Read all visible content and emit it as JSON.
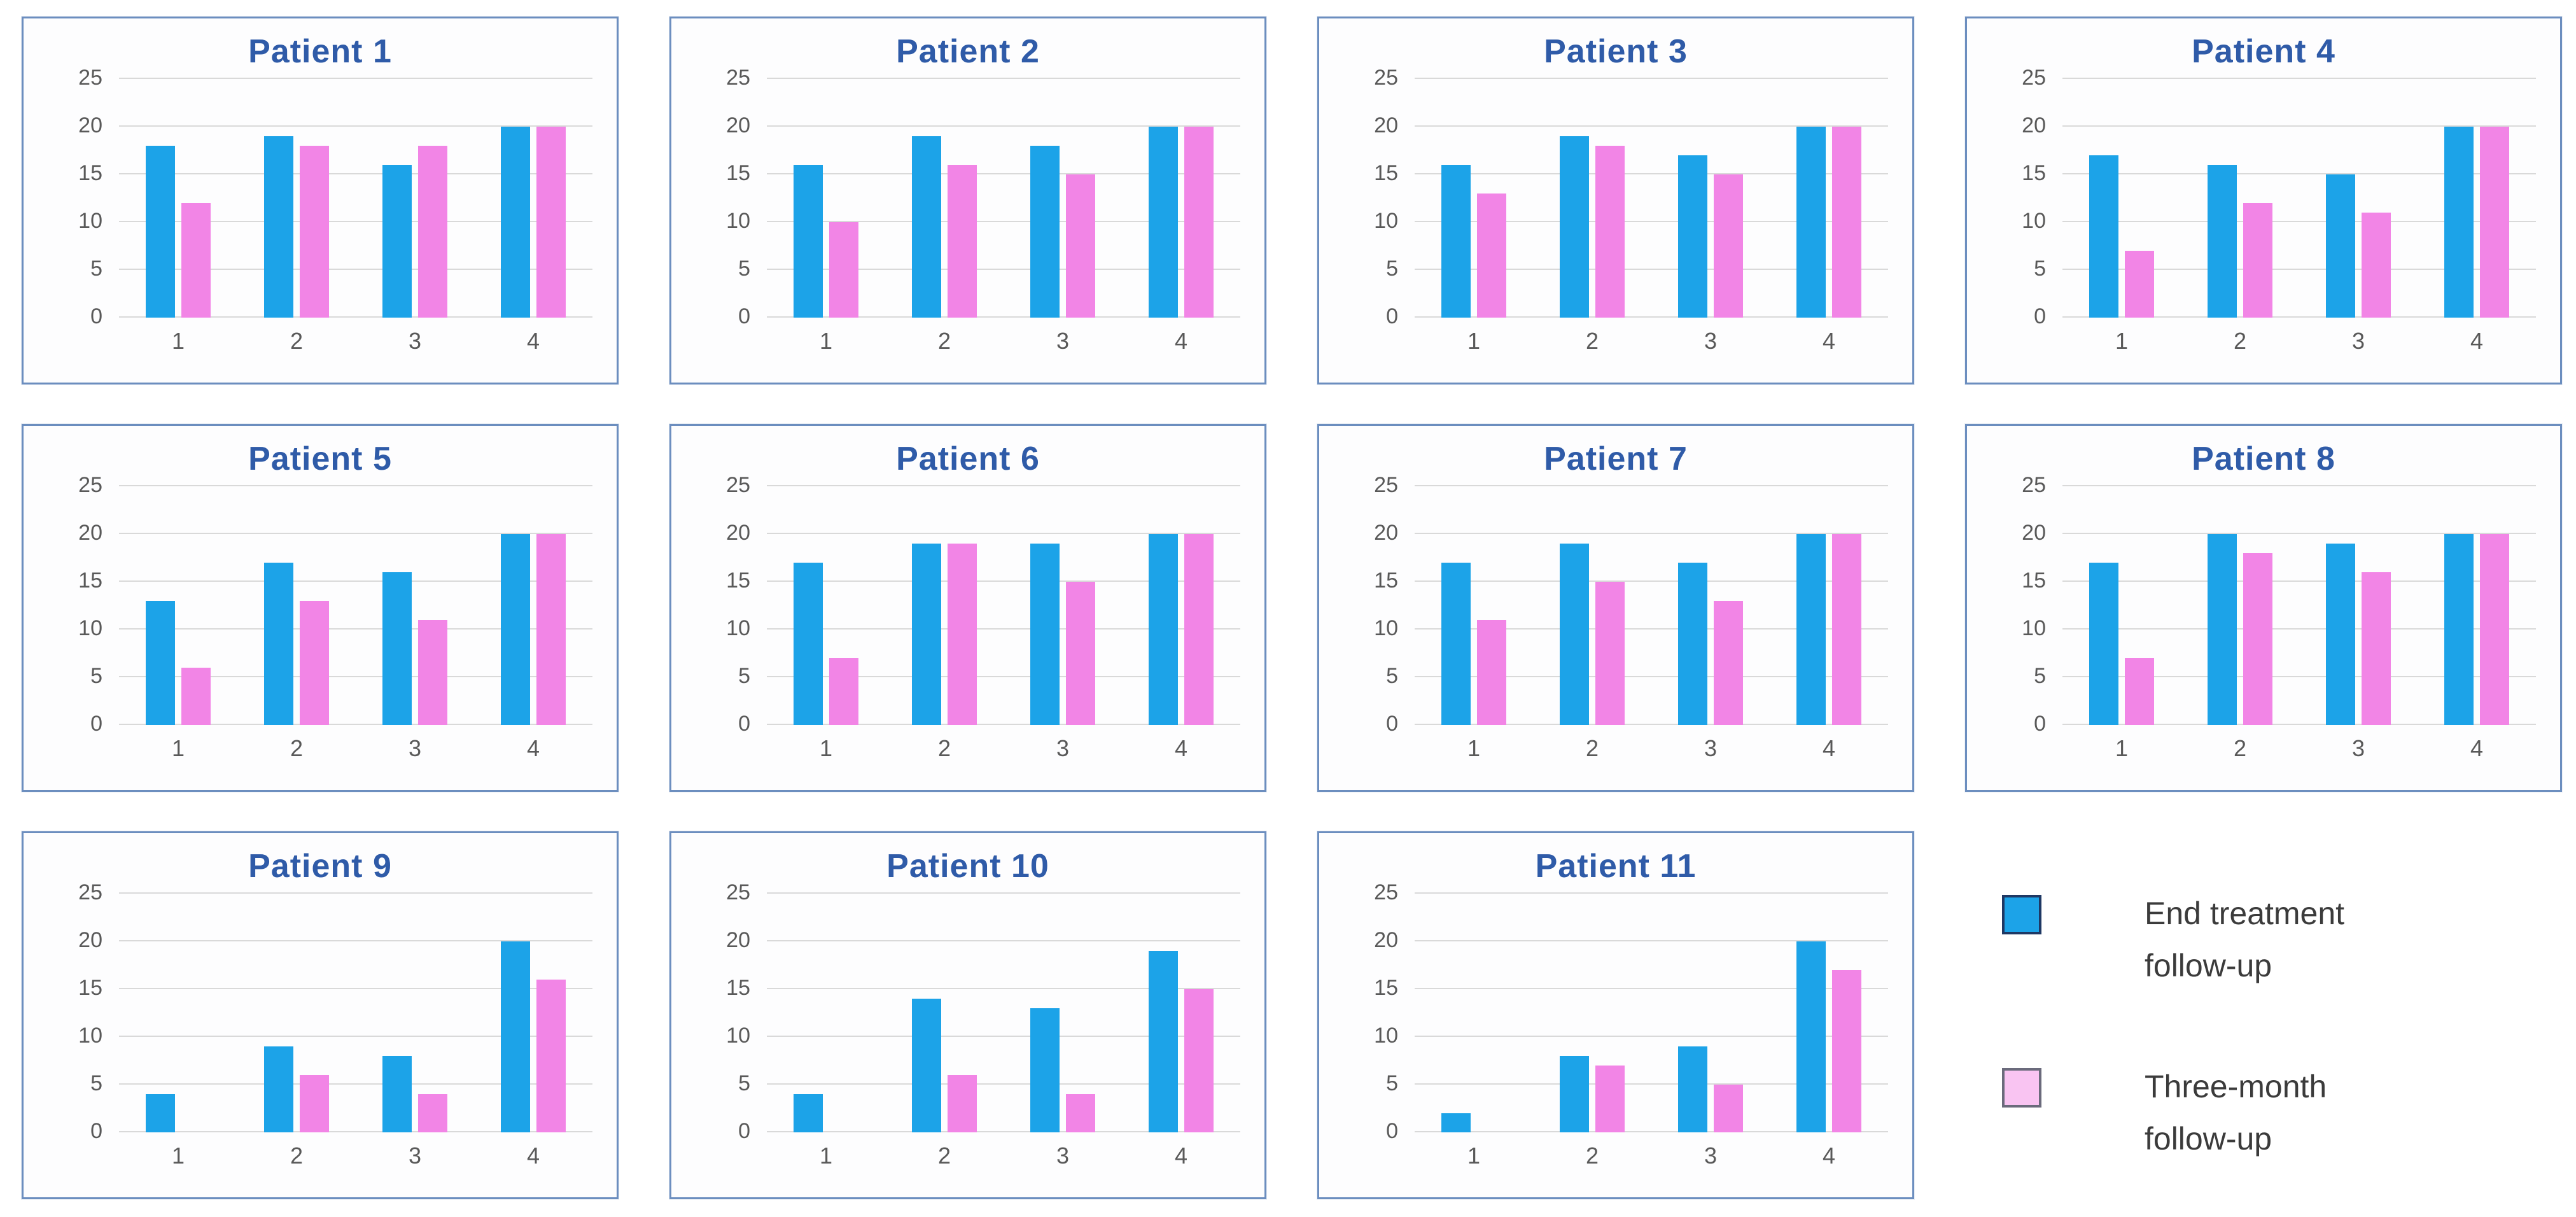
{
  "colors": {
    "end_treatment_blue": "#1CA3E8",
    "three_month_pink": "#F285E6",
    "legend_pink_fill": "#F9C4F2",
    "legend_blue_border": "#1F3864",
    "legend_pink_border": "#6B6B7C",
    "panel_border": "#6C8EBF",
    "title_text": "#2F5BA8",
    "axis_text": "#595959",
    "gridline": "#D9D9D9",
    "legend_text": "#3B3B3B"
  },
  "axis": {
    "ticks": [
      0,
      5,
      10,
      15,
      20,
      25
    ]
  },
  "legend": {
    "items": [
      {
        "series": "End treatment follow-up",
        "line1": "End treatment",
        "line2": "follow-up",
        "color_key": "blue"
      },
      {
        "series": "Three-month follow-up",
        "line1": "Three-month",
        "line2": "follow-up",
        "color_key": "pink"
      }
    ]
  },
  "chart_data": [
    {
      "type": "bar",
      "title": "Patient 1",
      "categories": [
        "1",
        "2",
        "3",
        "4"
      ],
      "ylim": [
        0,
        25
      ],
      "yticks": [
        0,
        5,
        10,
        15,
        20,
        25
      ],
      "grid": true,
      "series": [
        {
          "name": "End treatment follow-up",
          "values": [
            18,
            19,
            16,
            20
          ]
        },
        {
          "name": "Three-month follow-up",
          "values": [
            12,
            18,
            18,
            20
          ]
        }
      ]
    },
    {
      "type": "bar",
      "title": "Patient 2",
      "categories": [
        "1",
        "2",
        "3",
        "4"
      ],
      "ylim": [
        0,
        25
      ],
      "yticks": [
        0,
        5,
        10,
        15,
        20,
        25
      ],
      "grid": true,
      "series": [
        {
          "name": "End treatment follow-up",
          "values": [
            16,
            19,
            18,
            20
          ]
        },
        {
          "name": "Three-month follow-up",
          "values": [
            10,
            16,
            15,
            20
          ]
        }
      ]
    },
    {
      "type": "bar",
      "title": "Patient 3",
      "categories": [
        "1",
        "2",
        "3",
        "4"
      ],
      "ylim": [
        0,
        25
      ],
      "yticks": [
        0,
        5,
        10,
        15,
        20,
        25
      ],
      "grid": true,
      "series": [
        {
          "name": "End treatment follow-up",
          "values": [
            16,
            19,
            17,
            20
          ]
        },
        {
          "name": "Three-month follow-up",
          "values": [
            13,
            18,
            15,
            20
          ]
        }
      ]
    },
    {
      "type": "bar",
      "title": "Patient 4",
      "categories": [
        "1",
        "2",
        "3",
        "4"
      ],
      "ylim": [
        0,
        25
      ],
      "yticks": [
        0,
        5,
        10,
        15,
        20,
        25
      ],
      "grid": true,
      "series": [
        {
          "name": "End treatment follow-up",
          "values": [
            17,
            16,
            15,
            20
          ]
        },
        {
          "name": "Three-month follow-up",
          "values": [
            7,
            12,
            11,
            20
          ]
        }
      ]
    },
    {
      "type": "bar",
      "title": "Patient 5",
      "categories": [
        "1",
        "2",
        "3",
        "4"
      ],
      "ylim": [
        0,
        25
      ],
      "yticks": [
        0,
        5,
        10,
        15,
        20,
        25
      ],
      "grid": true,
      "series": [
        {
          "name": "End treatment follow-up",
          "values": [
            13,
            17,
            16,
            20
          ]
        },
        {
          "name": "Three-month follow-up",
          "values": [
            6,
            13,
            11,
            20
          ]
        }
      ]
    },
    {
      "type": "bar",
      "title": "Patient 6",
      "categories": [
        "1",
        "2",
        "3",
        "4"
      ],
      "ylim": [
        0,
        25
      ],
      "yticks": [
        0,
        5,
        10,
        15,
        20,
        25
      ],
      "grid": true,
      "series": [
        {
          "name": "End treatment follow-up",
          "values": [
            17,
            19,
            19,
            20
          ]
        },
        {
          "name": "Three-month follow-up",
          "values": [
            7,
            19,
            15,
            20
          ]
        }
      ]
    },
    {
      "type": "bar",
      "title": "Patient 7",
      "categories": [
        "1",
        "2",
        "3",
        "4"
      ],
      "ylim": [
        0,
        25
      ],
      "yticks": [
        0,
        5,
        10,
        15,
        20,
        25
      ],
      "grid": true,
      "series": [
        {
          "name": "End treatment follow-up",
          "values": [
            17,
            19,
            17,
            20
          ]
        },
        {
          "name": "Three-month follow-up",
          "values": [
            11,
            15,
            13,
            20
          ]
        }
      ]
    },
    {
      "type": "bar",
      "title": "Patient 8",
      "categories": [
        "1",
        "2",
        "3",
        "4"
      ],
      "ylim": [
        0,
        25
      ],
      "yticks": [
        0,
        5,
        10,
        15,
        20,
        25
      ],
      "grid": true,
      "series": [
        {
          "name": "End treatment follow-up",
          "values": [
            17,
            20,
            19,
            20
          ]
        },
        {
          "name": "Three-month follow-up",
          "values": [
            7,
            18,
            16,
            20
          ]
        }
      ]
    },
    {
      "type": "bar",
      "title": "Patient 9",
      "categories": [
        "1",
        "2",
        "3",
        "4"
      ],
      "ylim": [
        0,
        25
      ],
      "yticks": [
        0,
        5,
        10,
        15,
        20,
        25
      ],
      "grid": true,
      "series": [
        {
          "name": "End treatment follow-up",
          "values": [
            4,
            9,
            8,
            20
          ]
        },
        {
          "name": "Three-month follow-up",
          "values": [
            0,
            6,
            4,
            16
          ]
        }
      ]
    },
    {
      "type": "bar",
      "title": "Patient 10",
      "categories": [
        "1",
        "2",
        "3",
        "4"
      ],
      "ylim": [
        0,
        25
      ],
      "yticks": [
        0,
        5,
        10,
        15,
        20,
        25
      ],
      "grid": true,
      "series": [
        {
          "name": "End treatment follow-up",
          "values": [
            4,
            14,
            13,
            19
          ]
        },
        {
          "name": "Three-month follow-up",
          "values": [
            0,
            6,
            4,
            15
          ]
        }
      ]
    },
    {
      "type": "bar",
      "title": "Patient 11",
      "categories": [
        "1",
        "2",
        "3",
        "4"
      ],
      "ylim": [
        0,
        25
      ],
      "yticks": [
        0,
        5,
        10,
        15,
        20,
        25
      ],
      "grid": true,
      "series": [
        {
          "name": "End treatment follow-up",
          "values": [
            2,
            8,
            9,
            20
          ]
        },
        {
          "name": "Three-month follow-up",
          "values": [
            0,
            7,
            5,
            17
          ]
        }
      ]
    }
  ]
}
